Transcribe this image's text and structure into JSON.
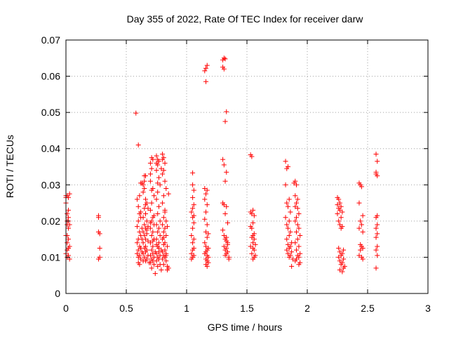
{
  "chart_data": {
    "type": "scatter",
    "title": "Day 355 of 2022, Rate Of TEC Index for receiver darw",
    "xlabel": "GPS time / hours",
    "ylabel": "ROTI / TECUs",
    "xlim": [
      0,
      3
    ],
    "ylim": [
      0,
      0.07
    ],
    "xticks": [
      0,
      0.5,
      1,
      1.5,
      2,
      2.5,
      3
    ],
    "xtick_labels": [
      "0",
      "0.5",
      "1",
      "1.5",
      "2",
      "2.5",
      "3"
    ],
    "yticks": [
      0,
      0.01,
      0.02,
      0.03,
      0.04,
      0.05,
      0.06,
      0.07
    ],
    "ytick_labels": [
      "0",
      "0.01",
      "0.02",
      "0.03",
      "0.04",
      "0.05",
      "0.06",
      "0.07"
    ],
    "grid": true,
    "marker": "plus",
    "color": "#ff0000",
    "series": [
      {
        "x": [
          0.0,
          0.0,
          0.01,
          0.0,
          0.01,
          0.02,
          0.01,
          0.02,
          0.0,
          0.02,
          0.01,
          0.03,
          0.02,
          0.01,
          0.0,
          0.02,
          0.01,
          0.03,
          0.02,
          0.01,
          0.03,
          0.02,
          0.02,
          0.01,
          0.03,
          0.27,
          0.27,
          0.27,
          0.28,
          0.28,
          0.27,
          0.28,
          0.58,
          0.6,
          0.62,
          0.61,
          0.59,
          0.6,
          0.61,
          0.62,
          0.6,
          0.59,
          0.63,
          0.61,
          0.62,
          0.6,
          0.59,
          0.61,
          0.62,
          0.6,
          0.63,
          0.59,
          0.61,
          0.6,
          0.62,
          0.64,
          0.6,
          0.61,
          0.62,
          0.63,
          0.64,
          0.65,
          0.66,
          0.65,
          0.64,
          0.66,
          0.67,
          0.65,
          0.66,
          0.64,
          0.67,
          0.65,
          0.68,
          0.66,
          0.64,
          0.67,
          0.65,
          0.66,
          0.68,
          0.64,
          0.66,
          0.65,
          0.67,
          0.66,
          0.64,
          0.68,
          0.65,
          0.67,
          0.66,
          0.69,
          0.7,
          0.71,
          0.7,
          0.72,
          0.71,
          0.7,
          0.72,
          0.73,
          0.71,
          0.7,
          0.72,
          0.71,
          0.73,
          0.7,
          0.72,
          0.71,
          0.73,
          0.7,
          0.72,
          0.71,
          0.74,
          0.72,
          0.7,
          0.73,
          0.71,
          0.72,
          0.7,
          0.73,
          0.71,
          0.74,
          0.75,
          0.76,
          0.75,
          0.77,
          0.76,
          0.75,
          0.77,
          0.78,
          0.76,
          0.75,
          0.77,
          0.76,
          0.78,
          0.75,
          0.77,
          0.76,
          0.78,
          0.75,
          0.77,
          0.76,
          0.79,
          0.77,
          0.75,
          0.78,
          0.76,
          0.77,
          0.75,
          0.78,
          0.76,
          0.79,
          0.8,
          0.81,
          0.8,
          0.82,
          0.81,
          0.8,
          0.82,
          0.83,
          0.81,
          0.8,
          0.82,
          0.81,
          0.83,
          0.8,
          0.82,
          0.81,
          0.83,
          0.8,
          0.82,
          0.81,
          0.84,
          0.82,
          0.8,
          0.83,
          0.81,
          0.82,
          0.8,
          0.83,
          0.81,
          0.84,
          0.85,
          0.84,
          0.85,
          0.84,
          0.63,
          0.62,
          0.65,
          0.67,
          0.66,
          0.7,
          0.73,
          0.72,
          0.76,
          0.77,
          0.79,
          0.81,
          0.82,
          0.83,
          0.75,
          0.71,
          0.68,
          1.05,
          1.05,
          1.06,
          1.05,
          1.06,
          1.04,
          1.05,
          1.06,
          1.05,
          1.04,
          1.06,
          1.05,
          1.06,
          1.05,
          1.04,
          1.06,
          1.05,
          1.04,
          1.06,
          1.05,
          1.15,
          1.16,
          1.17,
          1.16,
          1.15,
          1.17,
          1.16,
          1.15,
          1.17,
          1.16,
          1.15,
          1.17,
          1.16,
          1.18,
          1.17,
          1.15,
          1.16,
          1.18,
          1.17,
          1.16,
          1.15,
          1.17,
          1.18,
          1.16,
          1.17,
          1.18,
          1.16,
          1.17,
          1.3,
          1.31,
          1.32,
          1.3,
          1.31,
          1.33,
          1.32,
          1.3,
          1.31,
          1.33,
          1.32,
          1.3,
          1.31,
          1.33,
          1.32,
          1.34,
          1.3,
          1.31,
          1.33,
          1.32,
          1.34,
          1.31,
          1.33,
          1.32,
          1.34,
          1.33,
          1.32,
          1.35,
          1.35,
          1.34,
          1.33,
          1.53,
          1.54,
          1.55,
          1.53,
          1.54,
          1.56,
          1.55,
          1.53,
          1.54,
          1.56,
          1.55,
          1.54,
          1.56,
          1.55,
          1.57,
          1.53,
          1.55,
          1.56,
          1.54,
          1.57,
          1.56,
          1.55,
          1.82,
          1.83,
          1.84,
          1.82,
          1.85,
          1.83,
          1.84,
          1.86,
          1.82,
          1.85,
          1.83,
          1.84,
          1.86,
          1.85,
          1.83,
          1.87,
          1.84,
          1.86,
          1.85,
          1.83,
          1.87,
          1.84,
          1.86,
          1.85,
          1.88,
          1.87,
          1.89,
          1.9,
          1.91,
          1.9,
          1.92,
          1.91,
          1.9,
          1.92,
          1.93,
          1.91,
          1.9,
          1.92,
          1.93,
          1.91,
          1.94,
          1.92,
          1.9,
          1.93,
          1.91,
          1.94,
          1.92,
          1.93,
          1.91,
          1.9,
          1.94,
          1.93,
          2.25,
          2.26,
          2.27,
          2.25,
          2.28,
          2.26,
          2.27,
          2.29,
          2.25,
          2.28,
          2.26,
          2.27,
          2.29,
          2.28,
          2.26,
          2.3,
          2.27,
          2.29,
          2.28,
          2.26,
          2.3,
          2.27,
          2.29,
          2.28,
          2.31,
          2.3,
          2.27,
          2.29,
          2.43,
          2.44,
          2.45,
          2.43,
          2.46,
          2.44,
          2.45,
          2.43,
          2.46,
          2.44,
          2.45,
          2.46,
          2.44,
          2.43,
          2.45,
          2.46,
          2.57,
          2.58,
          2.57,
          2.58,
          2.57,
          2.58,
          2.57,
          2.58,
          2.57,
          2.58,
          2.57,
          2.58,
          2.57,
          2.58,
          2.57
        ],
        "y": [
          0.027,
          0.0265,
          0.027,
          0.025,
          0.022,
          0.02,
          0.019,
          0.018,
          0.016,
          0.015,
          0.014,
          0.013,
          0.0125,
          0.012,
          0.011,
          0.0105,
          0.01,
          0.0095,
          0.023,
          0.02,
          0.019,
          0.021,
          0.0265,
          0.016,
          0.0275,
          0.0215,
          0.021,
          0.017,
          0.0165,
          0.0125,
          0.0095,
          0.01,
          0.0498,
          0.041,
          0.0305,
          0.027,
          0.026,
          0.024,
          0.022,
          0.021,
          0.02,
          0.0185,
          0.018,
          0.017,
          0.016,
          0.015,
          0.014,
          0.013,
          0.0125,
          0.012,
          0.0115,
          0.011,
          0.0105,
          0.01,
          0.0095,
          0.009,
          0.0085,
          0.008,
          0.0125,
          0.015,
          0.03,
          0.031,
          0.0325,
          0.029,
          0.028,
          0.026,
          0.025,
          0.0235,
          0.022,
          0.021,
          0.02,
          0.019,
          0.0185,
          0.018,
          0.017,
          0.0165,
          0.016,
          0.015,
          0.0145,
          0.014,
          0.013,
          0.0125,
          0.012,
          0.0115,
          0.011,
          0.0105,
          0.01,
          0.0095,
          0.009,
          0.0085,
          0.033,
          0.0345,
          0.036,
          0.037,
          0.0375,
          0.031,
          0.029,
          0.027,
          0.025,
          0.023,
          0.021,
          0.02,
          0.019,
          0.018,
          0.017,
          0.016,
          0.015,
          0.014,
          0.013,
          0.012,
          0.0115,
          0.011,
          0.0105,
          0.01,
          0.0095,
          0.009,
          0.0085,
          0.008,
          0.007,
          0.0055,
          0.036,
          0.037,
          0.038,
          0.0365,
          0.0355,
          0.034,
          0.032,
          0.03,
          0.028,
          0.026,
          0.024,
          0.022,
          0.02,
          0.019,
          0.018,
          0.017,
          0.016,
          0.015,
          0.014,
          0.013,
          0.012,
          0.0115,
          0.011,
          0.0105,
          0.01,
          0.0095,
          0.009,
          0.008,
          0.0075,
          0.0065,
          0.0385,
          0.0375,
          0.037,
          0.036,
          0.034,
          0.033,
          0.031,
          0.029,
          0.027,
          0.025,
          0.023,
          0.021,
          0.02,
          0.019,
          0.018,
          0.017,
          0.016,
          0.015,
          0.014,
          0.0135,
          0.013,
          0.012,
          0.0115,
          0.011,
          0.0105,
          0.01,
          0.0095,
          0.009,
          0.008,
          0.0075,
          0.007,
          0.0065,
          0.0275,
          0.0185,
          0.0305,
          0.0225,
          0.0325,
          0.0175,
          0.0245,
          0.0195,
          0.0215,
          0.0145,
          0.0305,
          0.0125,
          0.0345,
          0.0155,
          0.0225,
          0.0105,
          0.0135,
          0.0285,
          0.0235,
          0.0333,
          0.03,
          0.0285,
          0.0265,
          0.0245,
          0.0225,
          0.021,
          0.0195,
          0.018,
          0.016,
          0.015,
          0.014,
          0.0125,
          0.012,
          0.011,
          0.0105,
          0.01,
          0.0095,
          0.0215,
          0.0235,
          0.0615,
          0.0622,
          0.063,
          0.0585,
          0.029,
          0.0285,
          0.0275,
          0.026,
          0.0245,
          0.0225,
          0.0205,
          0.019,
          0.017,
          0.0165,
          0.0155,
          0.014,
          0.013,
          0.0125,
          0.012,
          0.0115,
          0.011,
          0.0105,
          0.01,
          0.0095,
          0.009,
          0.0085,
          0.008,
          0.0075,
          0.0645,
          0.065,
          0.0648,
          0.0625,
          0.062,
          0.0502,
          0.0475,
          0.037,
          0.0355,
          0.0335,
          0.031,
          0.025,
          0.0245,
          0.024,
          0.022,
          0.0195,
          0.0175,
          0.016,
          0.0155,
          0.015,
          0.014,
          0.013,
          0.0125,
          0.012,
          0.0115,
          0.011,
          0.0105,
          0.01,
          0.0095,
          0.0135,
          0.0145,
          0.0383,
          0.0378,
          0.023,
          0.0225,
          0.022,
          0.0215,
          0.0195,
          0.0185,
          0.018,
          0.0165,
          0.016,
          0.0155,
          0.015,
          0.014,
          0.0135,
          0.013,
          0.0125,
          0.012,
          0.011,
          0.0105,
          0.01,
          0.0095,
          0.0365,
          0.0345,
          0.035,
          0.03,
          0.026,
          0.025,
          0.024,
          0.0225,
          0.021,
          0.02,
          0.019,
          0.018,
          0.017,
          0.016,
          0.015,
          0.014,
          0.0135,
          0.013,
          0.0125,
          0.012,
          0.0115,
          0.011,
          0.0105,
          0.01,
          0.0095,
          0.0075,
          0.0305,
          0.031,
          0.03,
          0.027,
          0.026,
          0.025,
          0.024,
          0.0235,
          0.022,
          0.021,
          0.02,
          0.019,
          0.018,
          0.017,
          0.016,
          0.015,
          0.014,
          0.013,
          0.012,
          0.011,
          0.0105,
          0.01,
          0.0095,
          0.009,
          0.0085,
          0.008,
          0.0265,
          0.026,
          0.025,
          0.0245,
          0.024,
          0.0235,
          0.023,
          0.0225,
          0.022,
          0.021,
          0.02,
          0.019,
          0.0185,
          0.018,
          0.0125,
          0.012,
          0.0115,
          0.011,
          0.0105,
          0.01,
          0.0095,
          0.009,
          0.0085,
          0.008,
          0.0075,
          0.007,
          0.0065,
          0.006,
          0.0305,
          0.03,
          0.0295,
          0.025,
          0.0215,
          0.02,
          0.019,
          0.018,
          0.017,
          0.0135,
          0.013,
          0.0125,
          0.012,
          0.0105,
          0.01,
          0.0095,
          0.0385,
          0.0365,
          0.0335,
          0.0325,
          0.033,
          0.0215,
          0.021,
          0.019,
          0.018,
          0.0165,
          0.0155,
          0.013,
          0.012,
          0.0105,
          0.007
        ]
      }
    ]
  }
}
